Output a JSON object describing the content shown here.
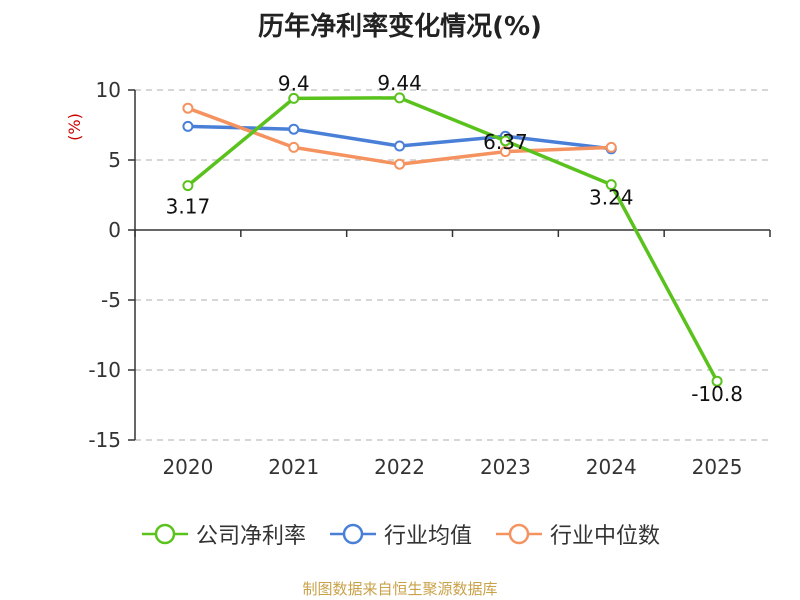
{
  "page_title": "历年净利率变化情况(%)",
  "source_note": "制图数据来自恒生聚源数据库",
  "colors": {
    "company": "#5ac21d",
    "industry_avg": "#4a7fd8",
    "industry_median": "#f59360",
    "ylabel": "#cc0000",
    "grid": "#c8c8c8",
    "axis": "#333333"
  },
  "chart_data": {
    "type": "line",
    "title": "历年净利率变化情况(%)",
    "xlabel": "",
    "ylabel": "(%)",
    "categories": [
      "2020",
      "2021",
      "2022",
      "2023",
      "2024",
      "2025"
    ],
    "ylim": [
      -15,
      10
    ],
    "yticks": [
      10,
      5,
      0,
      -5,
      -10,
      -15
    ],
    "grid": true,
    "legend_position": "bottom",
    "series": [
      {
        "name": "公司净利率",
        "values": [
          3.17,
          9.4,
          9.44,
          6.37,
          3.24,
          -10.8
        ],
        "labels": [
          "3.17",
          "9.4",
          "9.44",
          "6.37",
          "3.24",
          "-10.8"
        ]
      },
      {
        "name": "行业均值",
        "values": [
          7.4,
          7.2,
          6.0,
          6.7,
          5.8,
          null
        ]
      },
      {
        "name": "行业中位数",
        "values": [
          8.7,
          5.9,
          4.7,
          5.6,
          5.9,
          null
        ]
      }
    ]
  }
}
